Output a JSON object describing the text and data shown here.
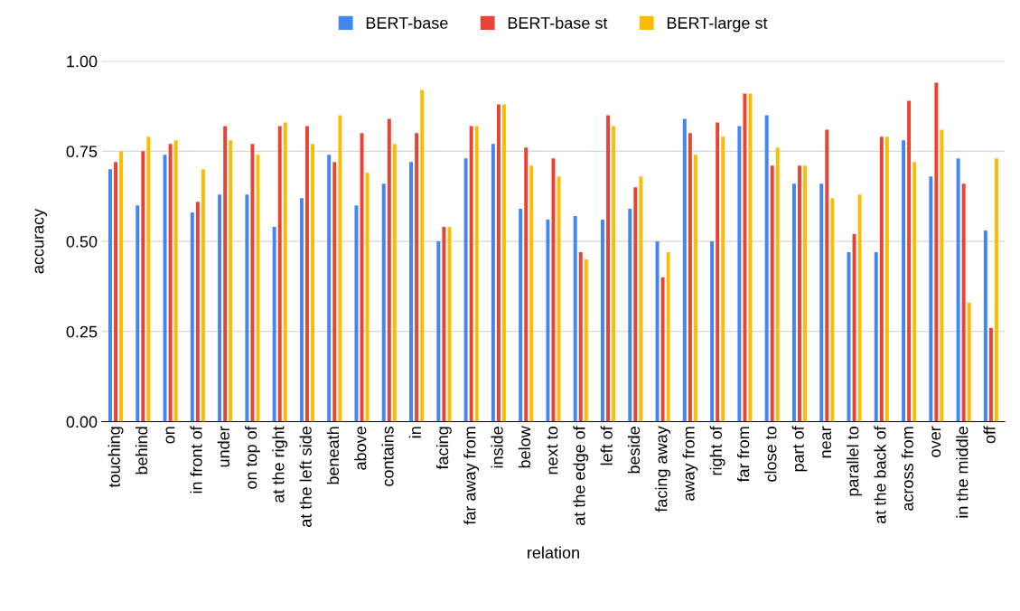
{
  "chart_data": {
    "type": "bar",
    "xlabel": "relation",
    "ylabel": "accuracy",
    "categories": [
      "touching",
      "behind",
      "on",
      "in front of",
      "under",
      "on top of",
      "at the right",
      "at the left side",
      "beneath",
      "above",
      "contains",
      "in",
      "facing",
      "far away from",
      "inside",
      "below",
      "next to",
      "at the edge of",
      "left of",
      "beside",
      "facing away",
      "away from",
      "right of",
      "far from",
      "close to",
      "part of",
      "near",
      "parallel to",
      "at the back of",
      "across from",
      "over",
      "in the middle",
      "off"
    ],
    "series": [
      {
        "name": "BERT-base",
        "color": "#4285f4",
        "values": [
          0.7,
          0.6,
          0.74,
          0.58,
          0.63,
          0.63,
          0.54,
          0.62,
          0.74,
          0.6,
          0.66,
          0.72,
          0.5,
          0.73,
          0.77,
          0.59,
          0.56,
          0.57,
          0.56,
          0.59,
          0.5,
          0.84,
          0.5,
          0.82,
          0.85,
          0.66,
          0.66,
          0.47,
          0.47,
          0.78,
          0.68,
          0.73,
          0.53
        ]
      },
      {
        "name": "BERT-base st",
        "color": "#ea4335",
        "values": [
          0.72,
          0.75,
          0.77,
          0.61,
          0.82,
          0.77,
          0.82,
          0.82,
          0.72,
          0.8,
          0.84,
          0.8,
          0.54,
          0.82,
          0.88,
          0.76,
          0.73,
          0.47,
          0.85,
          0.65,
          0.4,
          0.8,
          0.83,
          0.91,
          0.71,
          0.71,
          0.81,
          0.52,
          0.79,
          0.89,
          0.94,
          0.66,
          0.26
        ]
      },
      {
        "name": "BERT-large st",
        "color": "#fbbc04",
        "values": [
          0.75,
          0.79,
          0.78,
          0.7,
          0.78,
          0.74,
          0.83,
          0.77,
          0.85,
          0.69,
          0.77,
          0.92,
          0.54,
          0.82,
          0.88,
          0.71,
          0.68,
          0.45,
          0.82,
          0.68,
          0.47,
          0.74,
          0.79,
          0.91,
          0.76,
          0.71,
          0.62,
          0.63,
          0.79,
          0.72,
          0.81,
          0.33,
          0.73
        ]
      }
    ],
    "ylim": [
      0,
      1
    ],
    "yticks": [
      {
        "value": 0,
        "label": "0.00"
      },
      {
        "value": 0.25,
        "label": "0.25"
      },
      {
        "value": 0.5,
        "label": "0.50"
      },
      {
        "value": 0.75,
        "label": "0.75"
      },
      {
        "value": 1,
        "label": "1.00"
      }
    ],
    "grid": "y",
    "legend": "top"
  }
}
